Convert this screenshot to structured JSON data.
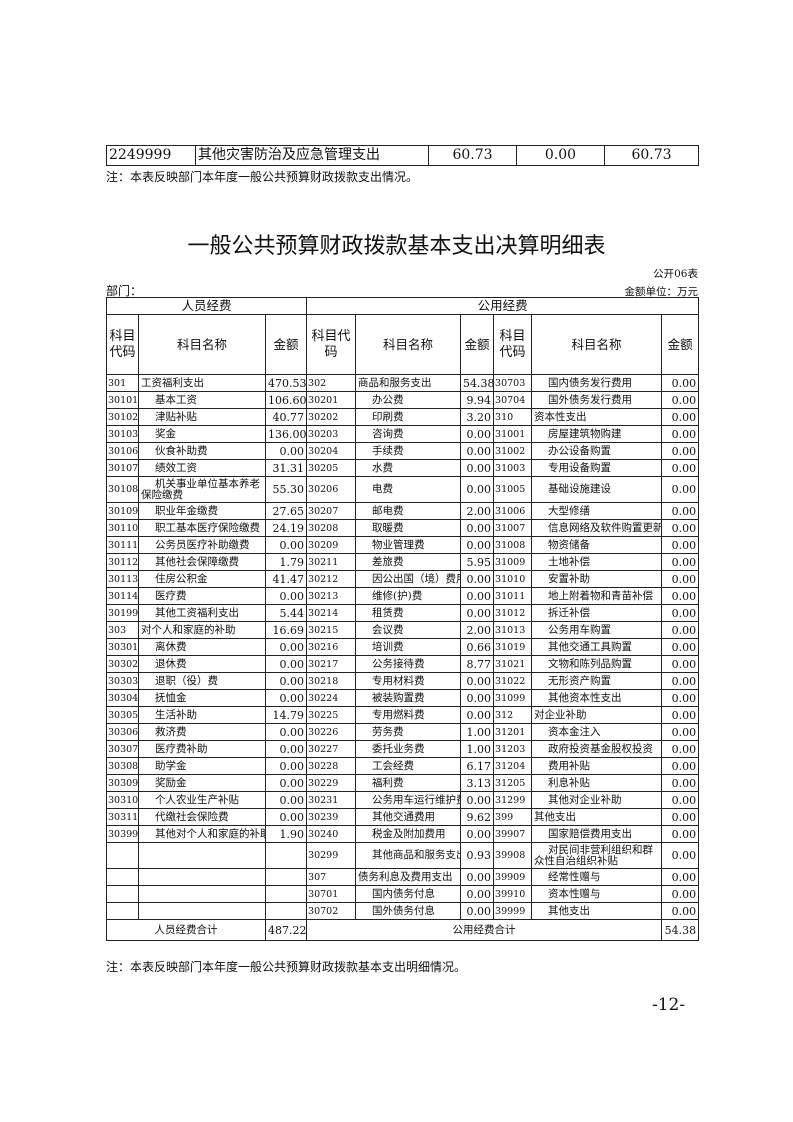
{
  "top_row": {
    "code": "2249999",
    "name": "其他灾害防治及应急管理支出",
    "values": [
      "60.73",
      "0.00",
      "60.73"
    ]
  },
  "top_note": "注：本表反映部门本年度一般公共预算财政拨款支出情况。",
  "title": "一般公共预算财政拨款基本支出决算明细表",
  "table_id": "公开06表",
  "department_label": "部门：",
  "unit_label": "金额单位：万元",
  "group_headers": [
    "人员经费",
    "公用经费"
  ],
  "column_headers": {
    "code": "科目代码",
    "name": "科目名称",
    "amount": "金额"
  },
  "rows": [
    [
      "301",
      "工资福利支出",
      "470.53",
      "302",
      "商品和服务支出",
      "54.38",
      "30703",
      "国内债务发行费用",
      "0.00"
    ],
    [
      "30101",
      "基本工资",
      "106.60",
      "30201",
      "办公费",
      "9.94",
      "30704",
      "国外债务发行费用",
      "0.00"
    ],
    [
      "30102",
      "津贴补贴",
      "40.77",
      "30202",
      "印刷费",
      "3.20",
      "310",
      "资本性支出",
      "0.00"
    ],
    [
      "30103",
      "奖金",
      "136.00",
      "30203",
      "咨询费",
      "0.00",
      "31001",
      "房屋建筑物购建",
      "0.00"
    ],
    [
      "30106",
      "伙食补助费",
      "0.00",
      "30204",
      "手续费",
      "0.00",
      "31002",
      "办公设备购置",
      "0.00"
    ],
    [
      "30107",
      "绩效工资",
      "31.31",
      "30205",
      "水费",
      "0.00",
      "31003",
      "专用设备购置",
      "0.00"
    ],
    [
      "30108",
      "机关事业单位基本养老保险缴费",
      "55.30",
      "30206",
      "电费",
      "0.00",
      "31005",
      "基础设施建设",
      "0.00"
    ],
    [
      "30109",
      "职业年金缴费",
      "27.65",
      "30207",
      "邮电费",
      "2.00",
      "31006",
      "大型修缮",
      "0.00"
    ],
    [
      "30110",
      "职工基本医疗保险缴费",
      "24.19",
      "30208",
      "取暖费",
      "0.00",
      "31007",
      "信息网络及软件购置更新",
      "0.00"
    ],
    [
      "30111",
      "公务员医疗补助缴费",
      "0.00",
      "30209",
      "物业管理费",
      "0.00",
      "31008",
      "物资储备",
      "0.00"
    ],
    [
      "30112",
      "其他社会保障缴费",
      "1.79",
      "30211",
      "差旅费",
      "5.95",
      "31009",
      "土地补偿",
      "0.00"
    ],
    [
      "30113",
      "住房公积金",
      "41.47",
      "30212",
      "因公出国（境）费用",
      "0.00",
      "31010",
      "安置补助",
      "0.00"
    ],
    [
      "30114",
      "医疗费",
      "0.00",
      "30213",
      "维修(护)费",
      "0.00",
      "31011",
      "地上附着物和青苗补偿",
      "0.00"
    ],
    [
      "30199",
      "其他工资福利支出",
      "5.44",
      "30214",
      "租赁费",
      "0.00",
      "31012",
      "拆迁补偿",
      "0.00"
    ],
    [
      "303",
      "对个人和家庭的补助",
      "16.69",
      "30215",
      "会议费",
      "2.00",
      "31013",
      "公务用车购置",
      "0.00"
    ],
    [
      "30301",
      "离休费",
      "0.00",
      "30216",
      "培训费",
      "0.66",
      "31019",
      "其他交通工具购置",
      "0.00"
    ],
    [
      "30302",
      "退休费",
      "0.00",
      "30217",
      "公务接待费",
      "8.77",
      "31021",
      "文物和陈列品购置",
      "0.00"
    ],
    [
      "30303",
      "退职（役）费",
      "0.00",
      "30218",
      "专用材料费",
      "0.00",
      "31022",
      "无形资产购置",
      "0.00"
    ],
    [
      "30304",
      "抚恤金",
      "0.00",
      "30224",
      "被装购置费",
      "0.00",
      "31099",
      "其他资本性支出",
      "0.00"
    ],
    [
      "30305",
      "生活补助",
      "14.79",
      "30225",
      "专用燃料费",
      "0.00",
      "312",
      "对企业补助",
      "0.00"
    ],
    [
      "30306",
      "救济费",
      "0.00",
      "30226",
      "劳务费",
      "1.00",
      "31201",
      "资本金注入",
      "0.00"
    ],
    [
      "30307",
      "医疗费补助",
      "0.00",
      "30227",
      "委托业务费",
      "1.00",
      "31203",
      "政府投资基金股权投资",
      "0.00"
    ],
    [
      "30308",
      "助学金",
      "0.00",
      "30228",
      "工会经费",
      "6.17",
      "31204",
      "费用补贴",
      "0.00"
    ],
    [
      "30309",
      "奖励金",
      "0.00",
      "30229",
      "福利费",
      "3.13",
      "31205",
      "利息补贴",
      "0.00"
    ],
    [
      "30310",
      "个人农业生产补贴",
      "0.00",
      "30231",
      "公务用车运行维护费",
      "0.00",
      "31299",
      "其他对企业补助",
      "0.00"
    ],
    [
      "30311",
      "代缴社会保险费",
      "0.00",
      "30239",
      "其他交通费用",
      "9.62",
      "399",
      "其他支出",
      "0.00"
    ],
    [
      "30399",
      "其他对个人和家庭的补助",
      "1.90",
      "30240",
      "税金及附加费用",
      "0.00",
      "39907",
      "国家赔偿费用支出",
      "0.00"
    ],
    [
      "",
      "",
      "",
      "30299",
      "其他商品和服务支出",
      "0.93",
      "39908",
      "对民间非营利组织和群众性自治组织补贴",
      "0.00"
    ],
    [
      "",
      "",
      "",
      "307",
      "债务利息及费用支出",
      "0.00",
      "39909",
      "经常性赠与",
      "0.00"
    ],
    [
      "",
      "",
      "",
      "30701",
      "国内债务付息",
      "0.00",
      "39910",
      "资本性赠与",
      "0.00"
    ],
    [
      "",
      "",
      "",
      "30702",
      "国外债务付息",
      "0.00",
      "39999",
      "其他支出",
      "0.00"
    ]
  ],
  "totals": {
    "personnel_label": "人员经费合计",
    "personnel_value": "487.22",
    "public_label": "公用经费合计",
    "public_value": "54.38"
  },
  "bottom_note": "注：本表反映部门本年度一般公共预算财政拨款基本支出明细情况。",
  "page_number": "-12-"
}
